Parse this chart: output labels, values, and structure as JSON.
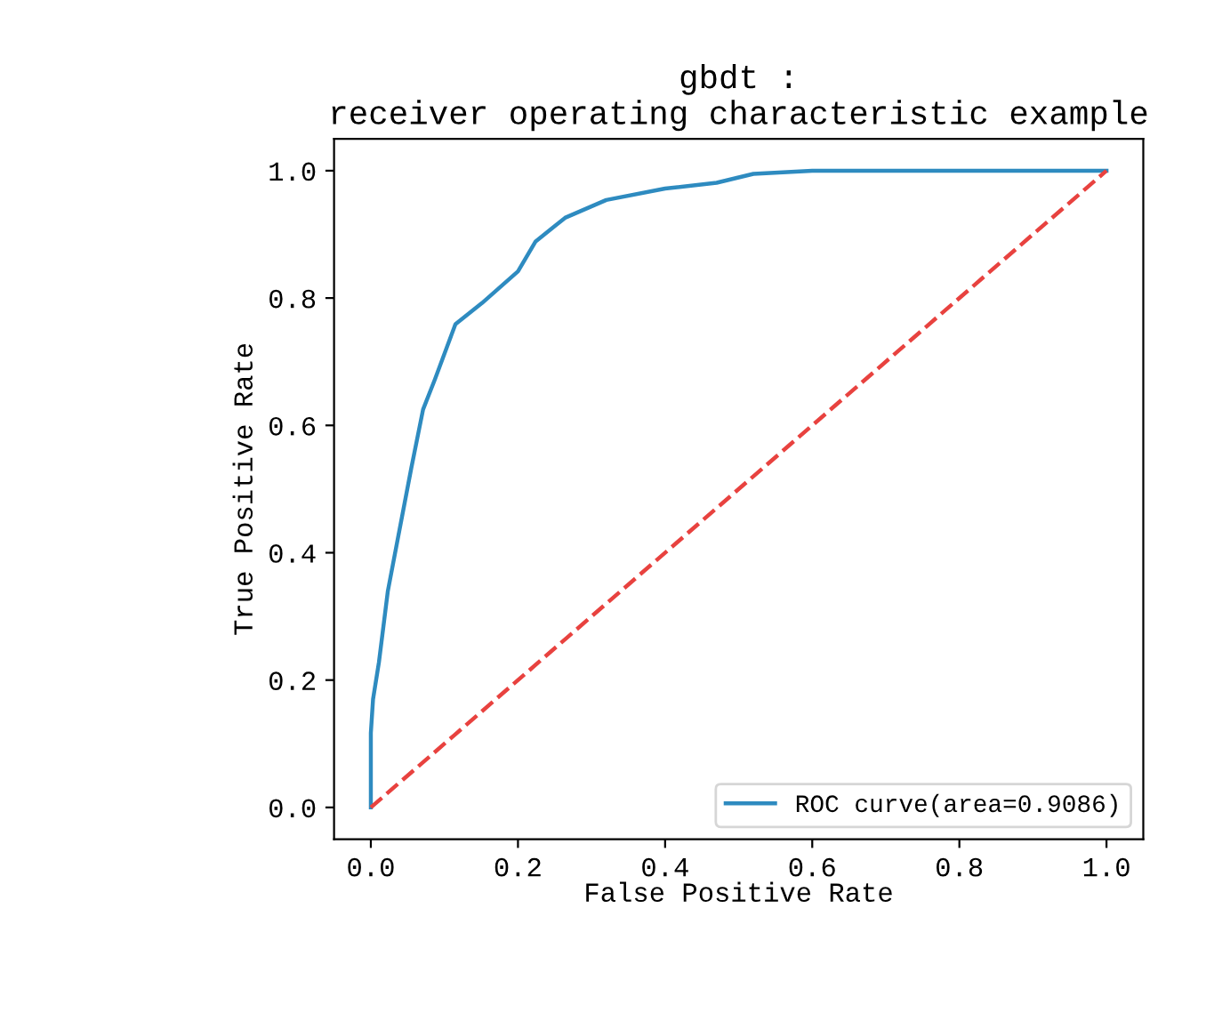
{
  "chart_data": {
    "type": "line",
    "title": "gbdt :\nreceiver operating characteristic example",
    "xlabel": "False Positive Rate",
    "ylabel": "True Positive Rate",
    "series": [
      {
        "name": "ROC curve(area=0.9086)",
        "color": "#2e8bc0",
        "line_style": "solid",
        "x": [
          0,
          0,
          0.003,
          0.011,
          0.023,
          0.035,
          0.055,
          0.071,
          0.087,
          0.115,
          0.151,
          0.2,
          0.224,
          0.264,
          0.32,
          0.4,
          0.47,
          0.52,
          0.6,
          0.8,
          1.0
        ],
        "values": [
          0,
          0.117,
          0.17,
          0.228,
          0.339,
          0.412,
          0.533,
          0.625,
          0.672,
          0.759,
          0.792,
          0.842,
          0.889,
          0.926,
          0.954,
          0.972,
          0.981,
          0.995,
          1.0,
          1.0,
          1.0
        ]
      },
      {
        "color": "#e8423f",
        "line_style": "dashed",
        "x": [
          0,
          1
        ],
        "values": [
          0,
          1
        ]
      }
    ],
    "xlim": [
      -0.05,
      1.05
    ],
    "ylim": [
      -0.05,
      1.05
    ],
    "xticks": [
      {
        "value": 0,
        "label": "0.0"
      },
      0.2,
      0.4,
      0.6,
      0.8,
      {
        "value": 1,
        "label": "1.0"
      }
    ],
    "yticks": [
      {
        "value": 0,
        "label": "0.0"
      },
      0.2,
      0.4,
      0.6,
      0.8,
      {
        "value": 1,
        "label": "1.0"
      }
    ],
    "legend": "lower right",
    "grid": false
  }
}
